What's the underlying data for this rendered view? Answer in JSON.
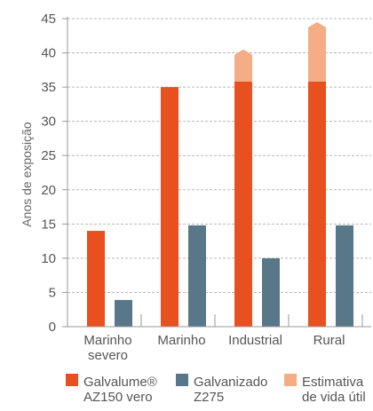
{
  "chart_data": {
    "type": "bar",
    "ylabel": "Anos de exposição",
    "ylim": [
      0,
      45
    ],
    "yticks": [
      0,
      5,
      10,
      15,
      20,
      25,
      30,
      35,
      40,
      45
    ],
    "grid": true,
    "legend_position": "bottom",
    "categories": [
      {
        "lines": [
          "Marinho",
          "severo"
        ]
      },
      {
        "lines": [
          "Marinho"
        ]
      },
      {
        "lines": [
          "Industrial"
        ]
      },
      {
        "lines": [
          "Rural"
        ]
      }
    ],
    "series": [
      {
        "name_lines": [
          "Galvalume®",
          "AZ150 vero"
        ],
        "color": "#e8501f",
        "values": [
          14,
          35,
          35.8,
          35.8
        ]
      },
      {
        "name_lines": [
          "Galvanizado",
          "Z275"
        ],
        "color": "#587889",
        "values": [
          3.9,
          14.8,
          10,
          14.8
        ]
      },
      {
        "name_lines": [
          "Estimativa",
          "de vida útil"
        ],
        "color": "#f4ad84",
        "stacked_on": 0,
        "values": [
          0,
          0,
          40.5,
          44.5
        ]
      }
    ]
  }
}
